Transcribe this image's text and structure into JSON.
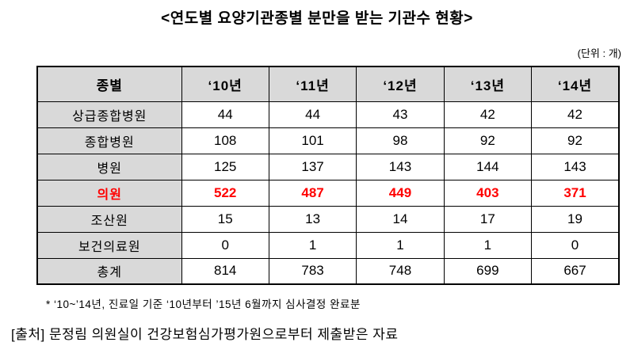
{
  "title": "<연도별 요양기관종별 분만을 받는 기관수 현황>",
  "unit_note": "(단위 : 개)",
  "table": {
    "header": [
      "종별",
      "‘10년",
      "‘11년",
      "‘12년",
      "‘13년",
      "‘14년"
    ],
    "rows": [
      {
        "label": "상급종합병원",
        "values": [
          "44",
          "44",
          "43",
          "42",
          "42"
        ],
        "highlight": false
      },
      {
        "label": "종합병원",
        "values": [
          "108",
          "101",
          "98",
          "92",
          "92"
        ],
        "highlight": false
      },
      {
        "label": "병원",
        "values": [
          "125",
          "137",
          "143",
          "144",
          "143"
        ],
        "highlight": false
      },
      {
        "label": "의원",
        "values": [
          "522",
          "487",
          "449",
          "403",
          "371"
        ],
        "highlight": true
      },
      {
        "label": "조산원",
        "values": [
          "15",
          "13",
          "14",
          "17",
          "19"
        ],
        "highlight": false
      },
      {
        "label": "보건의료원",
        "values": [
          "0",
          "1",
          "1",
          "1",
          "0"
        ],
        "highlight": false
      },
      {
        "label": "총계",
        "values": [
          "814",
          "783",
          "748",
          "699",
          "667"
        ],
        "highlight": false
      }
    ]
  },
  "footnote": "* ‘10~’14년, 진료일 기준 ‘10년부터 ’15년 6월까지 심사결정 완료분",
  "source": "[출처] 문정림 의원실이 건강보험심가평가원으로부터 제출받은 자료",
  "colors": {
    "highlight_text": "#ff0000",
    "header_bg": "#d9d9d9",
    "border": "#000000"
  }
}
